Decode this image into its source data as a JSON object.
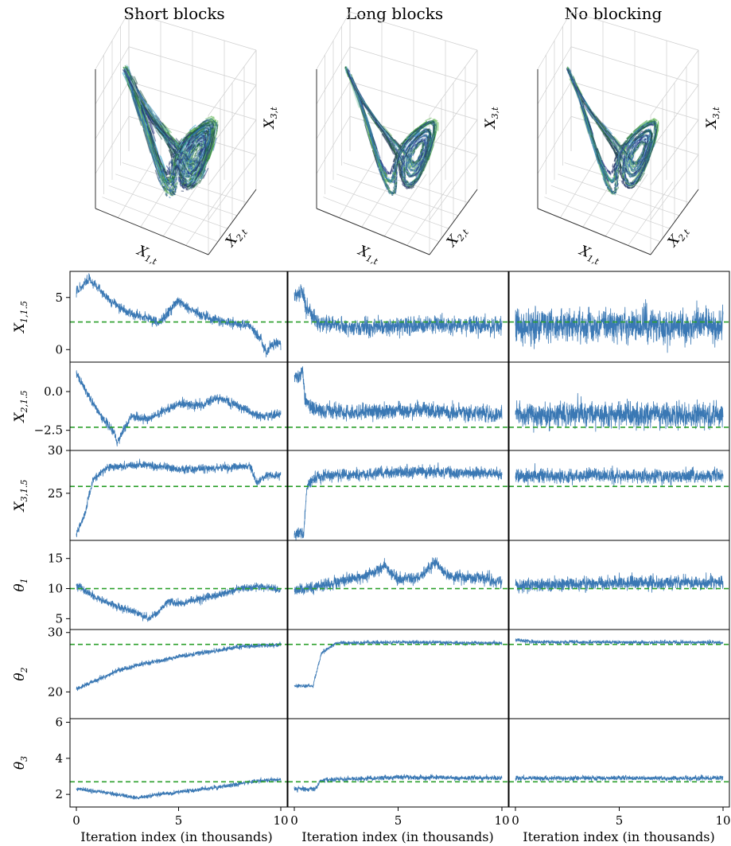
{
  "chart_data": {
    "type": "line",
    "columns": [
      "Short blocks",
      "Long blocks",
      "No blocking"
    ],
    "xlabel": "Iteration index (in thousands)",
    "xlim": [
      0,
      10
    ],
    "xticks": [
      0,
      5,
      10
    ],
    "attractor_axes": [
      {
        "base": "X",
        "sub": "1,t"
      },
      {
        "base": "X",
        "sub": "2,t"
      },
      {
        "base": "X",
        "sub": "3,t"
      }
    ],
    "rows": [
      {
        "base": "X",
        "sub": "1,1.5",
        "ylim": [
          -1.2,
          7.5
        ],
        "yticks": [
          0,
          5
        ],
        "yticklabels": [
          "0",
          "5"
        ],
        "truth": 2.65,
        "series": [
          {
            "start": 5.0,
            "path": [
              [
                0.2,
                5.8
              ],
              [
                0.6,
                6.8
              ],
              [
                1.5,
                5.0
              ],
              [
                2.5,
                3.5
              ],
              [
                3.5,
                3.0
              ],
              [
                4.0,
                2.5
              ],
              [
                5.0,
                4.7
              ],
              [
                5.5,
                3.8
              ],
              [
                6.5,
                3.0
              ],
              [
                7.5,
                2.5
              ],
              [
                8.5,
                2.4
              ],
              [
                9.0,
                1.0
              ],
              [
                9.3,
                -0.2
              ],
              [
                9.7,
                0.7
              ],
              [
                10.0,
                0.5
              ]
            ],
            "noise": 0.9
          },
          {
            "start": 5.3,
            "path": [
              [
                0.0,
                5.3
              ],
              [
                0.28,
                5.3
              ],
              [
                0.35,
                5.8
              ],
              [
                0.6,
                4.0
              ],
              [
                1.2,
                2.5
              ],
              [
                3.0,
                2.1
              ],
              [
                5.0,
                2.3
              ],
              [
                7.0,
                2.4
              ],
              [
                10.0,
                2.2
              ]
            ],
            "noise": 1.6
          },
          {
            "start": 2.3,
            "path": [
              [
                0.0,
                2.3
              ],
              [
                10.0,
                2.3
              ]
            ],
            "noise": 3.0
          }
        ]
      },
      {
        "base": "X",
        "sub": "2,1.5",
        "ylim": [
          -3.8,
          1.9
        ],
        "yticks": [
          -2.5,
          0.0
        ],
        "yticklabels": [
          "−2.5",
          "0.0"
        ],
        "truth": -2.3,
        "series": [
          {
            "start": 1.2,
            "path": [
              [
                0.0,
                1.2
              ],
              [
                0.4,
                0.2
              ],
              [
                1.0,
                -1.2
              ],
              [
                1.8,
                -2.6
              ],
              [
                2.0,
                -3.3
              ],
              [
                2.7,
                -1.5
              ],
              [
                3.5,
                -1.8
              ],
              [
                5.0,
                -0.8
              ],
              [
                6.0,
                -0.9
              ],
              [
                7.0,
                -0.4
              ],
              [
                8.0,
                -1.0
              ],
              [
                9.0,
                -1.6
              ],
              [
                10.0,
                -1.5
              ]
            ],
            "noise": 0.55
          },
          {
            "start": 1.0,
            "path": [
              [
                0.0,
                1.0
              ],
              [
                0.3,
                1.0
              ],
              [
                0.4,
                1.5
              ],
              [
                0.5,
                -0.5
              ],
              [
                1.0,
                -1.2
              ],
              [
                3.0,
                -1.3
              ],
              [
                6.0,
                -1.2
              ],
              [
                10.0,
                -1.5
              ]
            ],
            "noise": 1.0
          },
          {
            "start": -1.5,
            "path": [
              [
                0.0,
                -1.5
              ],
              [
                10.0,
                -1.5
              ]
            ],
            "noise": 1.6
          }
        ]
      },
      {
        "base": "X",
        "sub": "3,1.5",
        "ylim": [
          19.5,
          30.0
        ],
        "yticks": [
          25,
          30
        ],
        "yticklabels": [
          "25",
          "30"
        ],
        "truth": 25.8,
        "series": [
          {
            "start": 20.3,
            "path": [
              [
                0.0,
                20.3
              ],
              [
                0.4,
                22.5
              ],
              [
                0.8,
                26.5
              ],
              [
                1.5,
                28.0
              ],
              [
                3.0,
                28.4
              ],
              [
                5.0,
                27.8
              ],
              [
                7.0,
                28.0
              ],
              [
                8.5,
                28.2
              ],
              [
                8.8,
                26.2
              ],
              [
                9.2,
                27.0
              ],
              [
                10.0,
                27.2
              ]
            ],
            "noise": 0.9
          },
          {
            "start": 20.3,
            "path": [
              [
                0.0,
                20.3
              ],
              [
                0.45,
                20.3
              ],
              [
                0.6,
                25.5
              ],
              [
                1.0,
                27.0
              ],
              [
                3.0,
                27.2
              ],
              [
                6.0,
                27.5
              ],
              [
                10.0,
                27.3
              ]
            ],
            "noise": 1.3
          },
          {
            "start": 27.0,
            "path": [
              [
                0.0,
                27.0
              ],
              [
                10.0,
                27.0
              ]
            ],
            "noise": 1.6
          }
        ]
      },
      {
        "base": "θ",
        "sub": "1",
        "ylim": [
          3.2,
          18.0
        ],
        "yticks": [
          5,
          10,
          15
        ],
        "yticklabels": [
          "5",
          "10",
          "15"
        ],
        "truth": 10.0,
        "series": [
          {
            "start": 10.5,
            "path": [
              [
                0.0,
                10.5
              ],
              [
                1.0,
                8.5
              ],
              [
                2.0,
                7.0
              ],
              [
                3.0,
                6.0
              ],
              [
                3.5,
                5.0
              ],
              [
                4.0,
                6.0
              ],
              [
                4.5,
                8.0
              ],
              [
                5.0,
                7.5
              ],
              [
                6.0,
                8.2
              ],
              [
                7.0,
                9.0
              ],
              [
                8.0,
                10.0
              ],
              [
                9.0,
                10.3
              ],
              [
                10.0,
                9.8
              ]
            ],
            "noise": 1.2
          },
          {
            "start": 9.8,
            "path": [
              [
                0.0,
                9.8
              ],
              [
                1.0,
                10.2
              ],
              [
                2.5,
                11.5
              ],
              [
                3.5,
                12.0
              ],
              [
                4.3,
                13.8
              ],
              [
                5.0,
                11.5
              ],
              [
                6.0,
                11.8
              ],
              [
                6.8,
                14.5
              ],
              [
                7.5,
                12.0
              ],
              [
                9.0,
                11.8
              ],
              [
                10.0,
                11.0
              ]
            ],
            "noise": 2.0
          },
          {
            "start": 10.5,
            "path": [
              [
                0.0,
                10.5
              ],
              [
                5.0,
                11.0
              ],
              [
                10.0,
                11.0
              ]
            ],
            "noise": 2.2
          }
        ]
      },
      {
        "base": "θ",
        "sub": "2",
        "ylim": [
          15.5,
          30.5
        ],
        "yticks": [
          20,
          30
        ],
        "yticklabels": [
          "20",
          "30"
        ],
        "truth": 28.0,
        "series": [
          {
            "start": 20.5,
            "path": [
              [
                0.0,
                20.5
              ],
              [
                1.0,
                22.0
              ],
              [
                2.0,
                23.5
              ],
              [
                3.0,
                24.5
              ],
              [
                4.0,
                25.2
              ],
              [
                5.0,
                26.0
              ],
              [
                6.0,
                26.5
              ],
              [
                7.0,
                27.0
              ],
              [
                8.0,
                27.6
              ],
              [
                9.0,
                27.8
              ],
              [
                10.0,
                28.0
              ]
            ],
            "noise": 0.75
          },
          {
            "start": 21.0,
            "path": [
              [
                0.0,
                21.0
              ],
              [
                0.9,
                21.0
              ],
              [
                1.3,
                26.5
              ],
              [
                2.0,
                28.2
              ],
              [
                5.0,
                28.4
              ],
              [
                10.0,
                28.2
              ]
            ],
            "noise": 0.6
          },
          {
            "start": 28.8,
            "path": [
              [
                0.0,
                28.8
              ],
              [
                1.0,
                28.4
              ],
              [
                10.0,
                28.3
              ]
            ],
            "noise": 0.6
          }
        ]
      },
      {
        "base": "θ",
        "sub": "3",
        "ylim": [
          1.3,
          6.2
        ],
        "yticks": [
          2,
          4,
          6
        ],
        "yticklabels": [
          "2",
          "4",
          "6"
        ],
        "truth": 2.7,
        "series": [
          {
            "start": 2.3,
            "path": [
              [
                0.0,
                2.3
              ],
              [
                1.5,
                2.1
              ],
              [
                3.0,
                1.8
              ],
              [
                4.0,
                2.0
              ],
              [
                5.5,
                2.2
              ],
              [
                7.0,
                2.4
              ],
              [
                8.5,
                2.7
              ],
              [
                10.0,
                2.85
              ]
            ],
            "noise": 0.22
          },
          {
            "start": 2.3,
            "path": [
              [
                0.0,
                2.3
              ],
              [
                1.0,
                2.3
              ],
              [
                1.3,
                2.8
              ],
              [
                5.0,
                2.95
              ],
              [
                10.0,
                2.9
              ]
            ],
            "noise": 0.25
          },
          {
            "start": 2.9,
            "path": [
              [
                0.0,
                2.9
              ],
              [
                10.0,
                2.9
              ]
            ],
            "noise": 0.25
          }
        ]
      }
    ]
  },
  "colors": {
    "trace": "#3a78b4",
    "truth": "#2ca02c",
    "axes": "#000000",
    "grid3d": "#cfcfcf",
    "lorenz_gradient": [
      "#c4e2f0",
      "#37a3cf",
      "#2a5ea8",
      "#1f2f80",
      "#26365c",
      "#1a6b36",
      "#3a9a3c",
      "#7ec86a",
      "#c4e2f0"
    ]
  }
}
